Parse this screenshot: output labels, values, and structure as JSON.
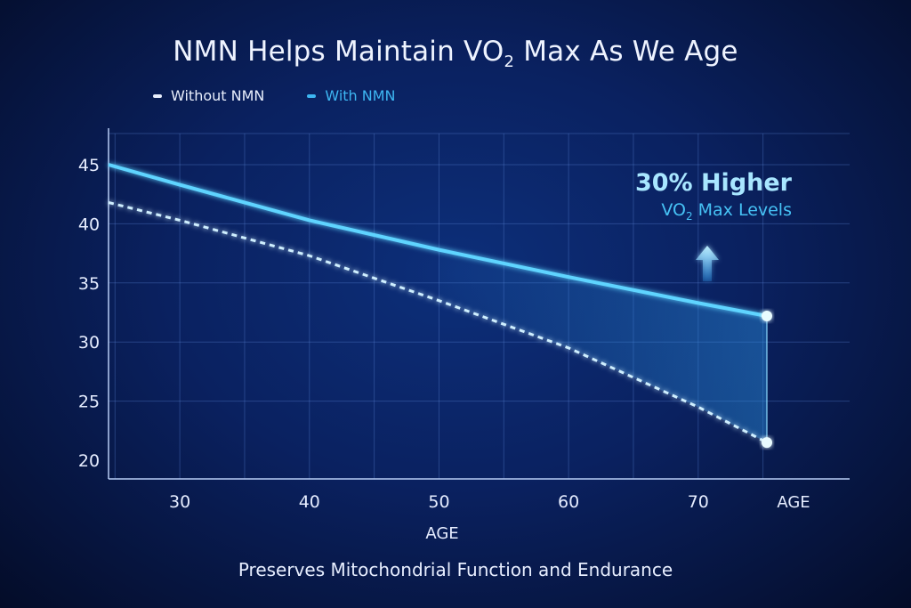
{
  "chart_data": {
    "type": "line",
    "title_main": "NMN Helps Maintain VO",
    "title_sub": "2",
    "title_tail": " Max As We Age",
    "xlabel": "AGE",
    "xlabel_end": "AGE",
    "ylabel": "",
    "xlim": [
      24.5,
      75.5
    ],
    "ylim": [
      20,
      47
    ],
    "x_ticks": [
      30,
      40,
      50,
      60,
      70
    ],
    "y_ticks": [
      20,
      25,
      30,
      35,
      40,
      45
    ],
    "grid": true,
    "legend_position": "top-left",
    "series": [
      {
        "name": "Without NMN",
        "style": "dashed",
        "color": "#cfefff",
        "x": [
          24.5,
          30,
          40,
          50,
          60,
          70,
          75.3
        ],
        "y": [
          41.8,
          40.3,
          37.3,
          33.5,
          29.5,
          24.5,
          21.5
        ]
      },
      {
        "name": "With NMN",
        "style": "solid",
        "color": "#5fd4ff",
        "x": [
          24.5,
          30,
          40,
          50,
          60,
          70,
          75.3
        ],
        "y": [
          45.0,
          43.3,
          40.3,
          37.8,
          35.5,
          33.3,
          32.2
        ]
      }
    ],
    "annotation": {
      "headline": "30% Higher",
      "line2_pre": "VO",
      "line2_sub": "2",
      "line2_post": " Max Levels"
    },
    "footer": "Preserves Mitochondrial Function and Endurance"
  },
  "legend_labels": [
    "Without NMN",
    "With NMN"
  ],
  "colors": {
    "legend_without": "#e8eefc",
    "legend_with": "#3db6f2",
    "fill": "#2a8fe0"
  }
}
